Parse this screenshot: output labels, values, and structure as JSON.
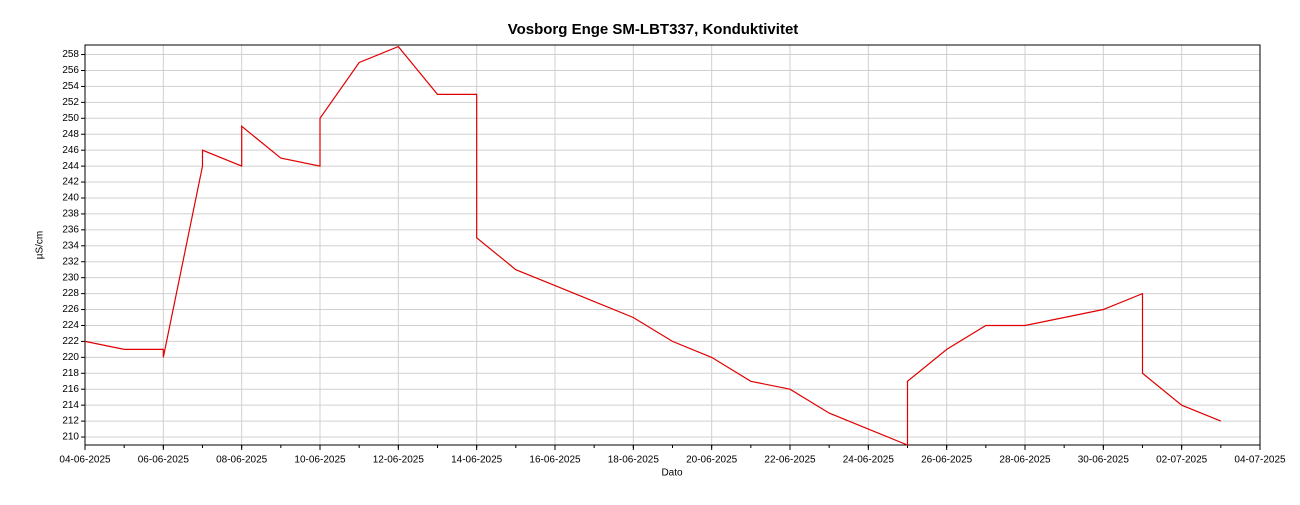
{
  "chart_data": {
    "type": "line",
    "title": "Vosborg Enge SM-LBT337, Konduktivitet",
    "x_label": "Dato",
    "y_label": "µS/cm",
    "x": [
      "04-06-2025",
      "05-06-2025",
      "06-06-2025",
      "06-06-2025",
      "07-06-2025",
      "07-06-2025",
      "08-06-2025",
      "08-06-2025",
      "09-06-2025",
      "10-06-2025",
      "10-06-2025",
      "11-06-2025",
      "12-06-2025",
      "13-06-2025",
      "14-06-2025",
      "14-06-2025",
      "15-06-2025",
      "16-06-2025",
      "17-06-2025",
      "18-06-2025",
      "19-06-2025",
      "20-06-2025",
      "21-06-2025",
      "22-06-2025",
      "23-06-2025",
      "24-06-2025",
      "25-06-2025",
      "25-06-2025",
      "26-06-2025",
      "27-06-2025",
      "28-06-2025",
      "29-06-2025",
      "30-06-2025",
      "01-07-2025",
      "01-07-2025",
      "02-07-2025",
      "03-07-2025"
    ],
    "series": [
      {
        "name": "Konduktivitet",
        "color": "#e00000",
        "values": [
          222,
          221,
          221,
          220,
          244,
          246,
          244,
          249,
          245,
          244,
          250,
          257,
          259,
          253,
          253,
          235,
          231,
          229,
          227,
          225,
          222,
          220,
          217,
          216,
          213,
          211,
          209,
          217,
          221,
          224,
          224,
          225,
          226,
          228,
          218,
          214,
          212
        ]
      }
    ],
    "xlim": [
      "04-06-2025",
      "04-07-2025"
    ],
    "xticks": [
      "04-06-2025",
      "06-06-2025",
      "08-06-2025",
      "10-06-2025",
      "12-06-2025",
      "14-06-2025",
      "16-06-2025",
      "18-06-2025",
      "20-06-2025",
      "22-06-2025",
      "24-06-2025",
      "26-06-2025",
      "28-06-2025",
      "30-06-2025",
      "02-07-2025",
      "04-07-2025"
    ],
    "ylim": [
      209,
      259.2
    ],
    "yticks": [
      210,
      212,
      214,
      216,
      218,
      220,
      222,
      224,
      226,
      228,
      230,
      232,
      234,
      236,
      238,
      240,
      242,
      244,
      246,
      248,
      250,
      252,
      254,
      256,
      258
    ],
    "grid": true
  }
}
